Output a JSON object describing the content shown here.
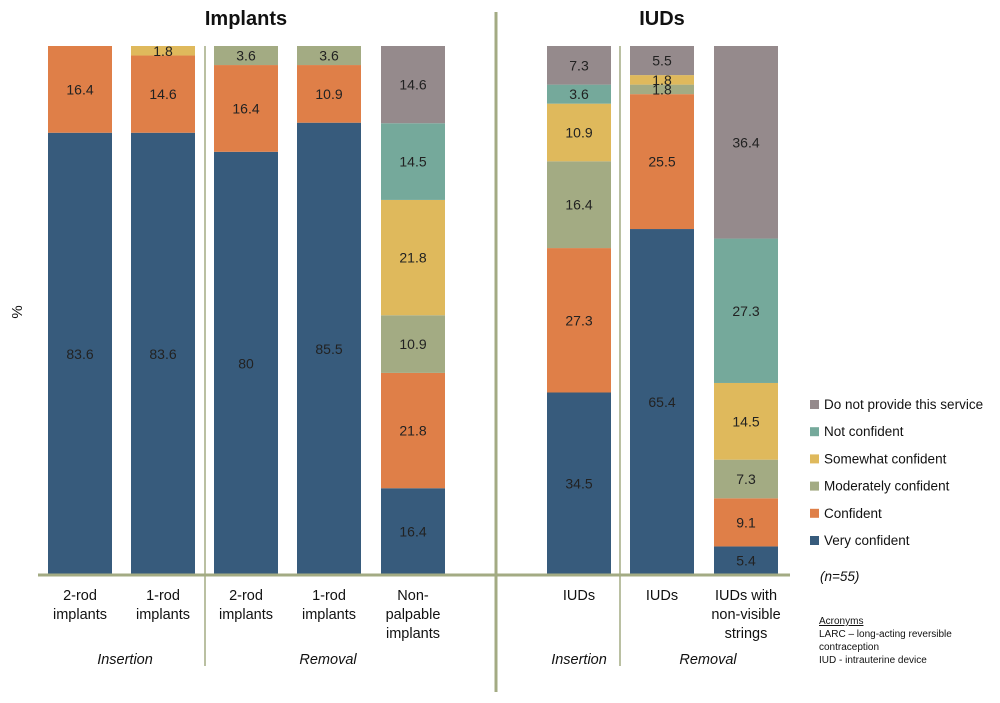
{
  "chart_data": {
    "type": "bar",
    "stacked": true,
    "ylabel": "%",
    "ylim": [
      0,
      100
    ],
    "grid": false,
    "legend_position": "right",
    "panels": [
      {
        "title": "Implants",
        "groups": [
          {
            "label": "Insertion",
            "categories": [
              [
                "2-rod",
                "implants"
              ],
              [
                "1-rod",
                "implants"
              ]
            ]
          },
          {
            "label": "Removal",
            "categories": [
              [
                "2-rod",
                "implants"
              ],
              [
                "1-rod",
                "implants"
              ],
              [
                "Non-",
                "palpable",
                "implants"
              ]
            ]
          }
        ]
      },
      {
        "title": "IUDs",
        "groups": [
          {
            "label": "Insertion",
            "categories": [
              [
                "IUDs"
              ]
            ]
          },
          {
            "label": "Removal",
            "categories": [
              [
                "IUDs"
              ],
              [
                "IUDs with",
                "non-visible",
                "strings"
              ]
            ]
          }
        ]
      }
    ],
    "series": [
      {
        "name": "Very confident",
        "color": "#375b7c",
        "values": [
          83.6,
          83.6,
          80,
          85.5,
          16.4,
          34.5,
          65.4,
          5.4
        ]
      },
      {
        "name": "Confident",
        "color": "#df7f48",
        "values": [
          16.4,
          14.6,
          16.4,
          10.9,
          21.8,
          27.3,
          25.5,
          9.1
        ]
      },
      {
        "name": "Moderately confident",
        "color": "#a3ab83",
        "values": [
          0,
          0,
          3.6,
          3.6,
          10.9,
          16.4,
          1.8,
          7.3
        ]
      },
      {
        "name": "Somewhat confident",
        "color": "#dfb95c",
        "values": [
          0,
          1.8,
          0,
          0,
          21.8,
          10.9,
          1.8,
          14.5
        ]
      },
      {
        "name": "Not confident",
        "color": "#75a99b",
        "values": [
          0,
          0,
          0,
          0,
          14.5,
          3.6,
          0,
          27.3
        ]
      },
      {
        "name": "Do not provide this service",
        "color": "#958a8c",
        "values": [
          0,
          0,
          0,
          0,
          14.6,
          7.3,
          5.5,
          36.4
        ]
      }
    ],
    "legend_order": [
      "Do not provide this service",
      "Not confident",
      "Somewhat confident",
      "Moderately confident",
      "Confident",
      "Very confident"
    ],
    "axis_color": "#a3ab83"
  },
  "note": "(n=55)",
  "acronyms": {
    "heading": "Acronyms",
    "lines": [
      "LARC – long-acting reversible",
      "contraception",
      "IUD - intrauterine device"
    ]
  }
}
